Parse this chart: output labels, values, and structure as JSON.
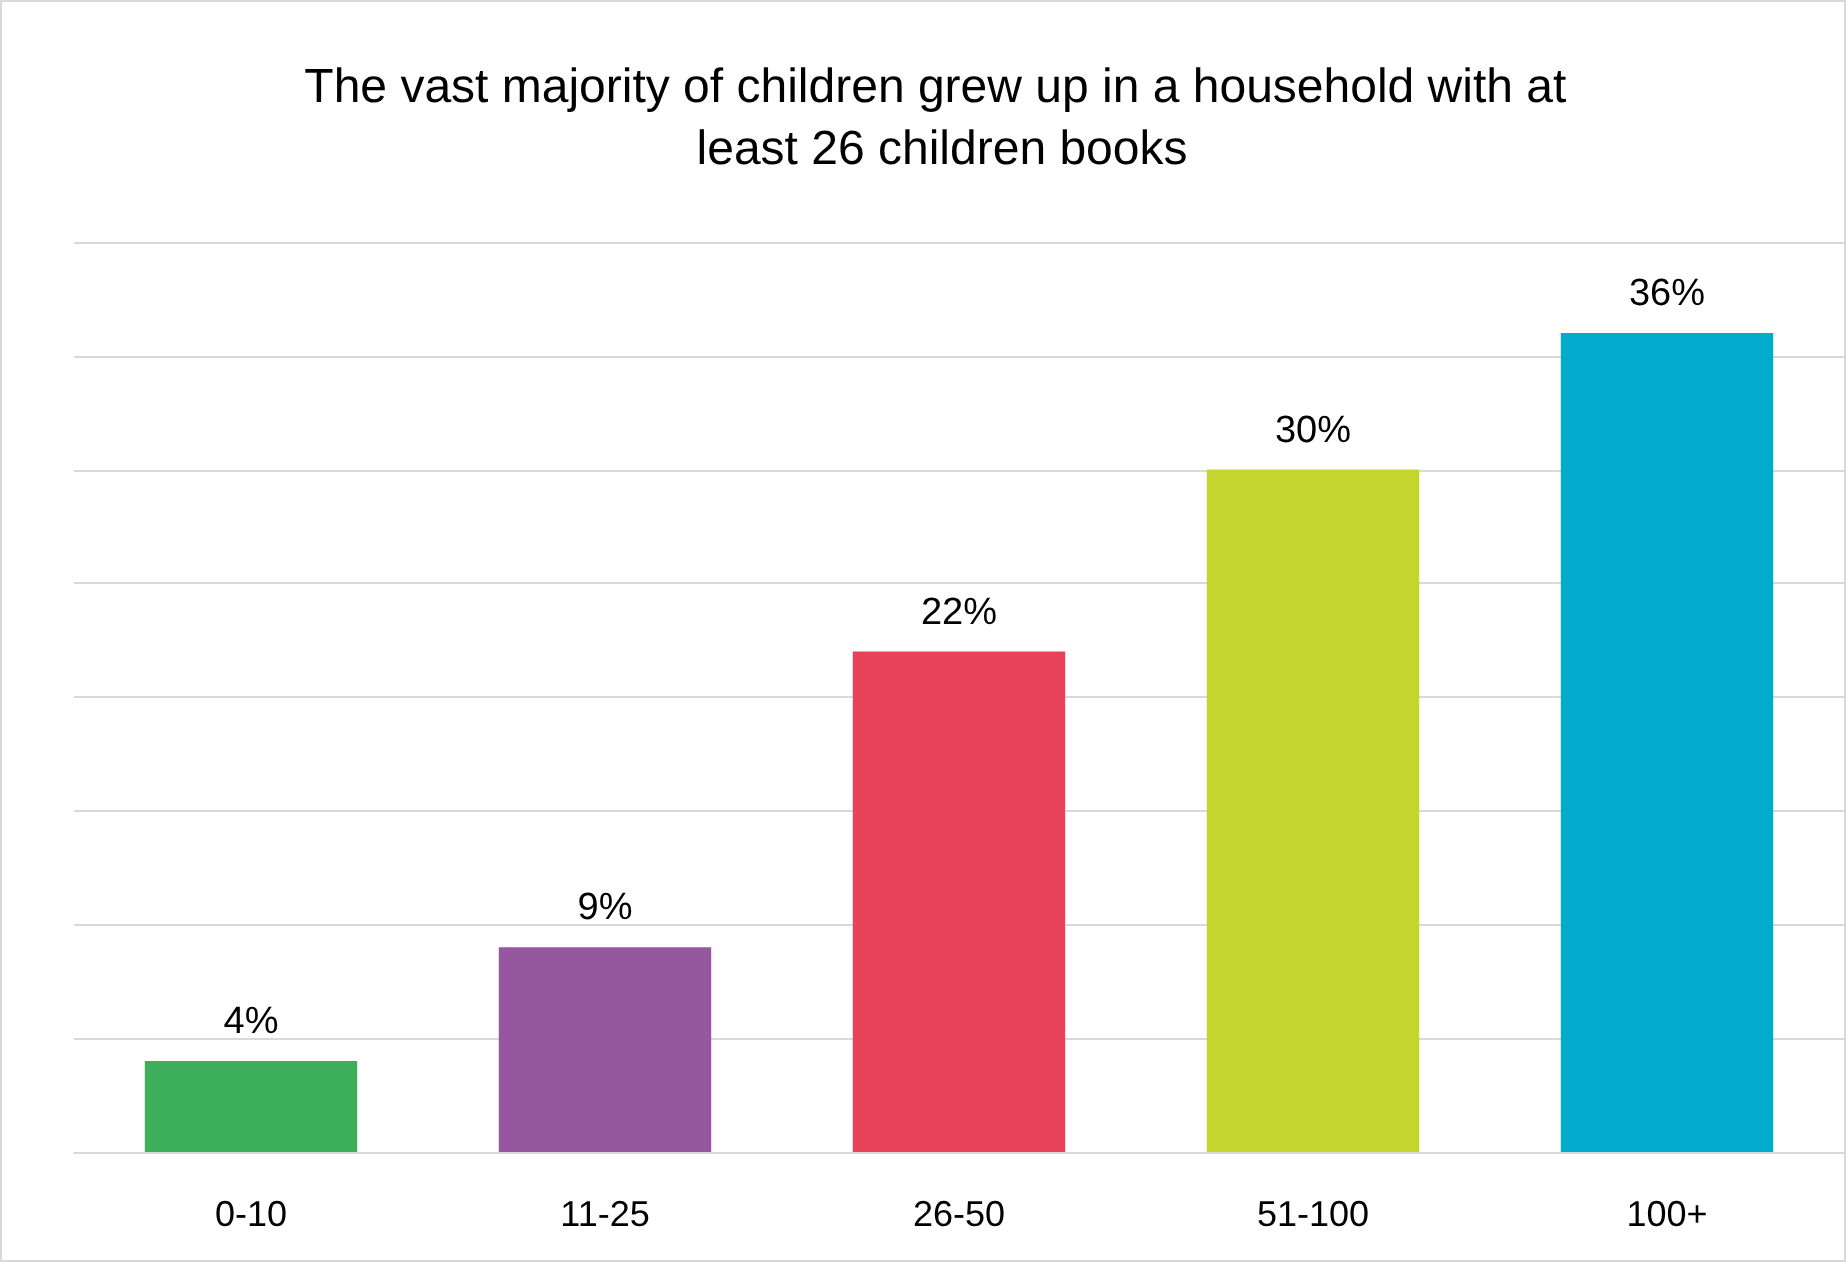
{
  "chart_data": {
    "type": "bar",
    "title": "The vast majority of children grew up in a household with at least 26 children books",
    "categories": [
      "0-10",
      "11-25",
      "26-50",
      "51-100",
      "100+"
    ],
    "values": [
      4,
      9,
      22,
      30,
      36
    ],
    "value_labels": [
      "4%",
      "9%",
      "22%",
      "30%",
      "36%"
    ],
    "colors": [
      "#3daf5c",
      "#95579e",
      "#e8435a",
      "#c4d52d",
      "#00abcc"
    ],
    "ylim": [
      0,
      40
    ],
    "yticks": [
      {
        "value": 0,
        "label": null
      },
      {
        "value": 5,
        "label": null
      },
      {
        "value": 10,
        "label": null
      },
      {
        "value": 15,
        "label": null
      },
      {
        "value": 20,
        "label": null
      },
      {
        "value": 25,
        "label": null
      },
      {
        "value": 30,
        "label": null
      },
      {
        "value": 35,
        "label": null
      },
      {
        "value": 40,
        "label": null
      }
    ],
    "tick_labels": "x",
    "grid": "y"
  }
}
